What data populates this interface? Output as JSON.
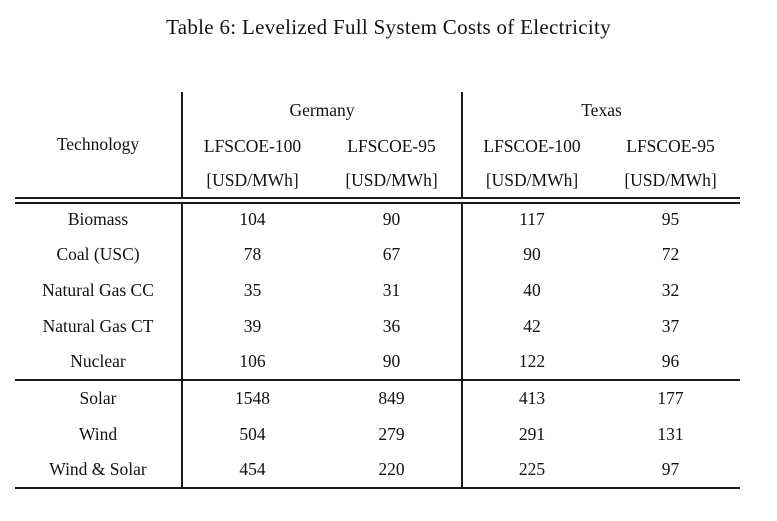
{
  "title": "Table 6: Levelized Full System Costs of Electricity",
  "table": {
    "technology_header": "Technology",
    "groups": {
      "germany": "Germany",
      "texas": "Texas"
    },
    "columns": [
      "LFSCOE-100",
      "LFSCOE-95",
      "LFSCOE-100",
      "LFSCOE-95"
    ],
    "unit": "[USD/MWh]",
    "rows": [
      {
        "tech": "Biomass",
        "values": [
          "104",
          "90",
          "117",
          "95"
        ]
      },
      {
        "tech": "Coal (USC)",
        "values": [
          "78",
          "67",
          "90",
          "72"
        ]
      },
      {
        "tech": "Natural Gas CC",
        "values": [
          "35",
          "31",
          "40",
          "32"
        ]
      },
      {
        "tech": "Natural Gas CT",
        "values": [
          "39",
          "36",
          "42",
          "37"
        ]
      },
      {
        "tech": "Nuclear",
        "values": [
          "106",
          "90",
          "122",
          "96"
        ]
      },
      {
        "tech": "Solar",
        "values": [
          "1548",
          "849",
          "413",
          "177"
        ]
      },
      {
        "tech": "Wind",
        "values": [
          "504",
          "279",
          "291",
          "131"
        ]
      },
      {
        "tech": "Wind & Solar",
        "values": [
          "454",
          "220",
          "225",
          "97"
        ]
      }
    ]
  },
  "colors": {
    "background": "#ffffff",
    "text": "#111111",
    "rule": "#1a1a1a"
  }
}
